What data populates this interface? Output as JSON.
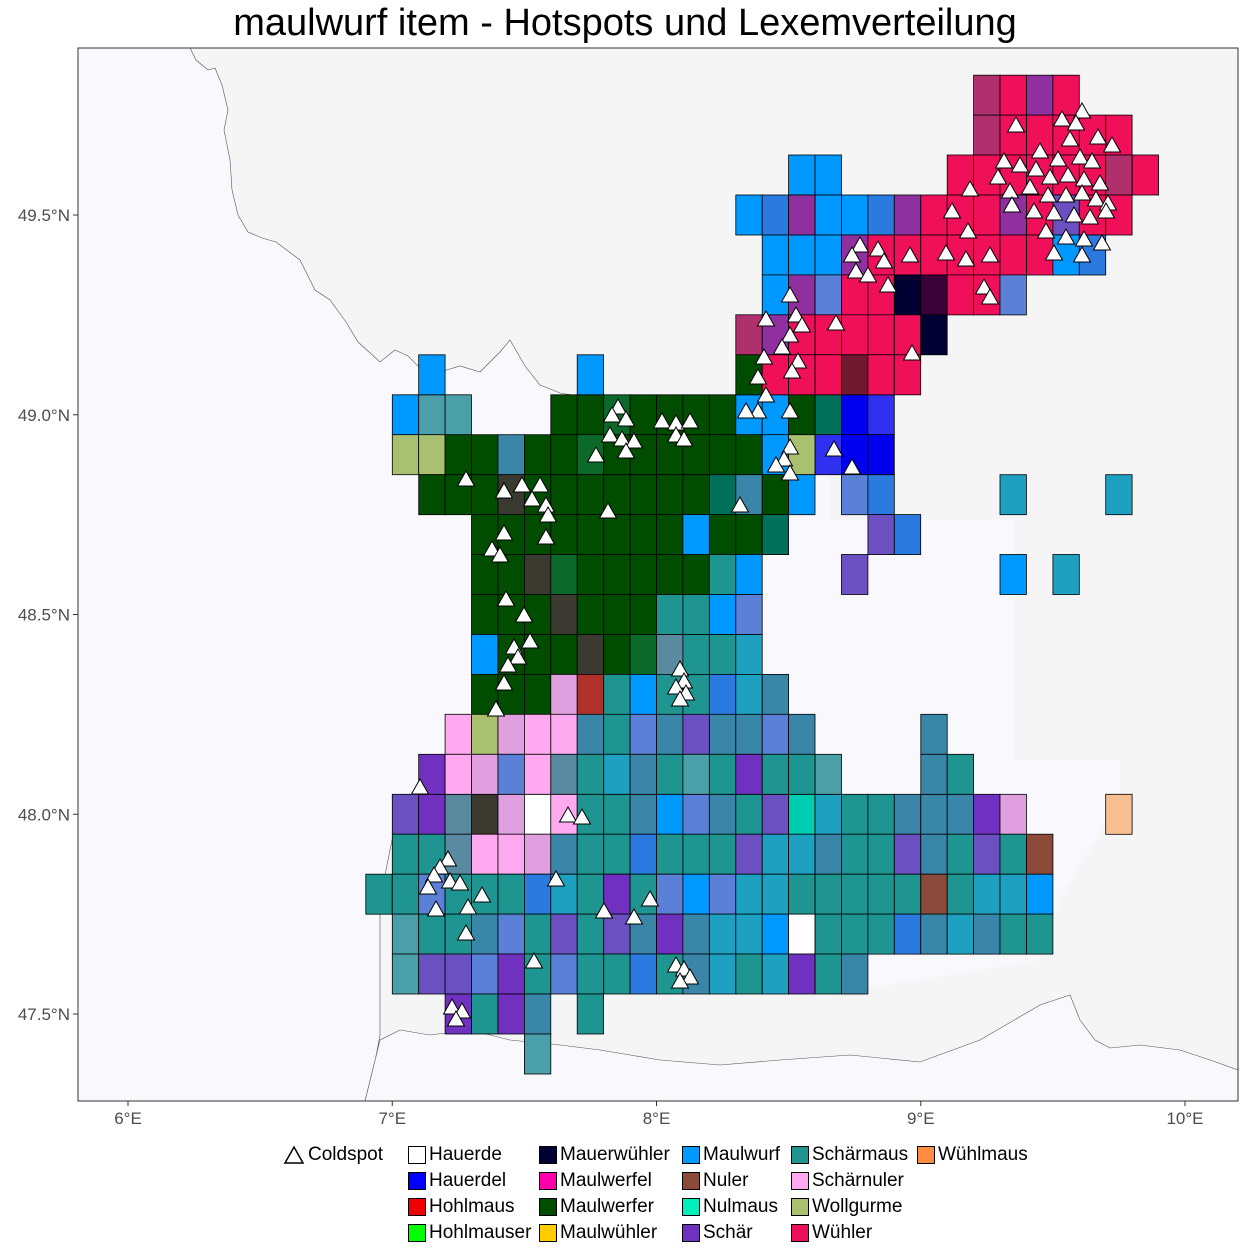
{
  "title": "maulwurf item - Hotspots und Lexemverteilung",
  "chart_data": {
    "type": "map",
    "x_ticks": [
      "6°E",
      "7°E",
      "8°E",
      "9°E",
      "10°E"
    ],
    "y_ticks": [
      "49.5°N",
      "49.0°N",
      "48.5°N",
      "48.0°N",
      "47.5°N"
    ],
    "xlim": [
      5.82,
      10.21
    ],
    "ylim": [
      47.28,
      49.9
    ],
    "cell_size_deg": 0.1,
    "legend": {
      "coldspot_label": "Coldspot",
      "items": [
        {
          "label": "Hauerde",
          "color": "#FFFFFF"
        },
        {
          "label": "Hauerdel",
          "color": "#0000FF"
        },
        {
          "label": "Hohlmaus",
          "color": "#EE0000"
        },
        {
          "label": "Hohlmauser",
          "color": "#00FF00"
        },
        {
          "label": "Mauerwühler",
          "color": "#000033"
        },
        {
          "label": "Maulwerfel",
          "color": "#FF00AA"
        },
        {
          "label": "Maulwerfer",
          "color": "#004D00"
        },
        {
          "label": "Maulwühler",
          "color": "#FFCC00"
        },
        {
          "label": "Maulwurf",
          "color": "#0099FF"
        },
        {
          "label": "Nuler",
          "color": "#8B4A3A"
        },
        {
          "label": "Nulmaus",
          "color": "#00EEBB"
        },
        {
          "label": "Schär",
          "color": "#7030C0"
        },
        {
          "label": "Schärmaus",
          "color": "#1E9590"
        },
        {
          "label": "Schärnuler",
          "color": "#FFAAF0"
        },
        {
          "label": "Wollgurme",
          "color": "#A8C070"
        },
        {
          "label": "Wühler",
          "color": "#F0105A"
        },
        {
          "label": "Wühlmaus",
          "color": "#FF8C40"
        }
      ]
    }
  }
}
